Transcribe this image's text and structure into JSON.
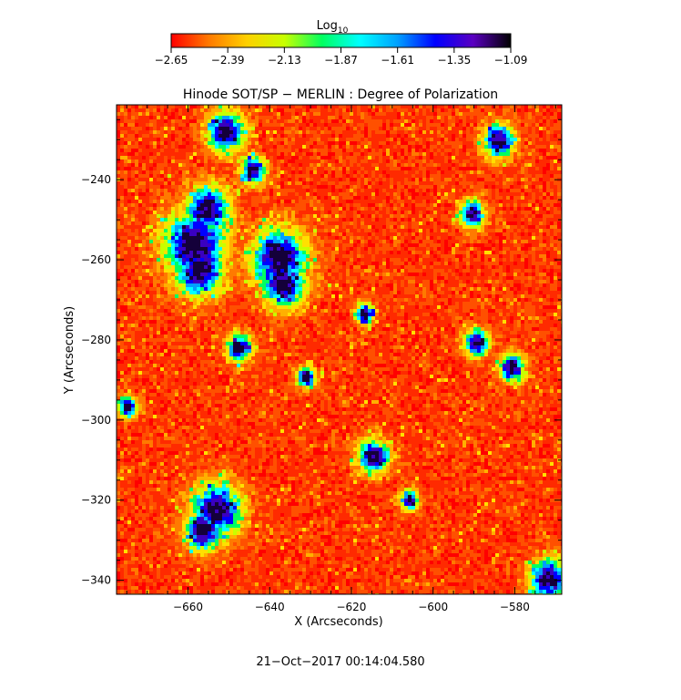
{
  "colorbar": {
    "label_main": "Log",
    "label_sub": "10",
    "ticks": [
      "−2.65",
      "−2.39",
      "−2.13",
      "−1.87",
      "−1.61",
      "−1.35",
      "−1.09"
    ],
    "colors": [
      "#ff0000",
      "#ff7a00",
      "#ffd000",
      "#c8ff00",
      "#00ff60",
      "#00ffff",
      "#00a0ff",
      "#0000ff",
      "#5a00c0",
      "#000000"
    ]
  },
  "title": "Hinode SOT/SP − MERLIN : Degree of Polarization",
  "x_axis": {
    "label": "X (Arcseconds)",
    "ticks": [
      -660,
      -640,
      -620,
      -600,
      -580
    ],
    "tick_labels": [
      "−660",
      "−640",
      "−620",
      "−600",
      "−580"
    ],
    "range": [
      -677.5,
      -568.5
    ]
  },
  "y_axis": {
    "label": "Y (Arcseconds)",
    "ticks": [
      -240,
      -260,
      -280,
      -300,
      -320,
      -340
    ],
    "tick_labels": [
      "−240",
      "−260",
      "−280",
      "−300",
      "−320",
      "−340"
    ],
    "range": [
      -343.5,
      -221.3
    ]
  },
  "timestamp": "21−Oct−2017 00:14:04.580"
}
